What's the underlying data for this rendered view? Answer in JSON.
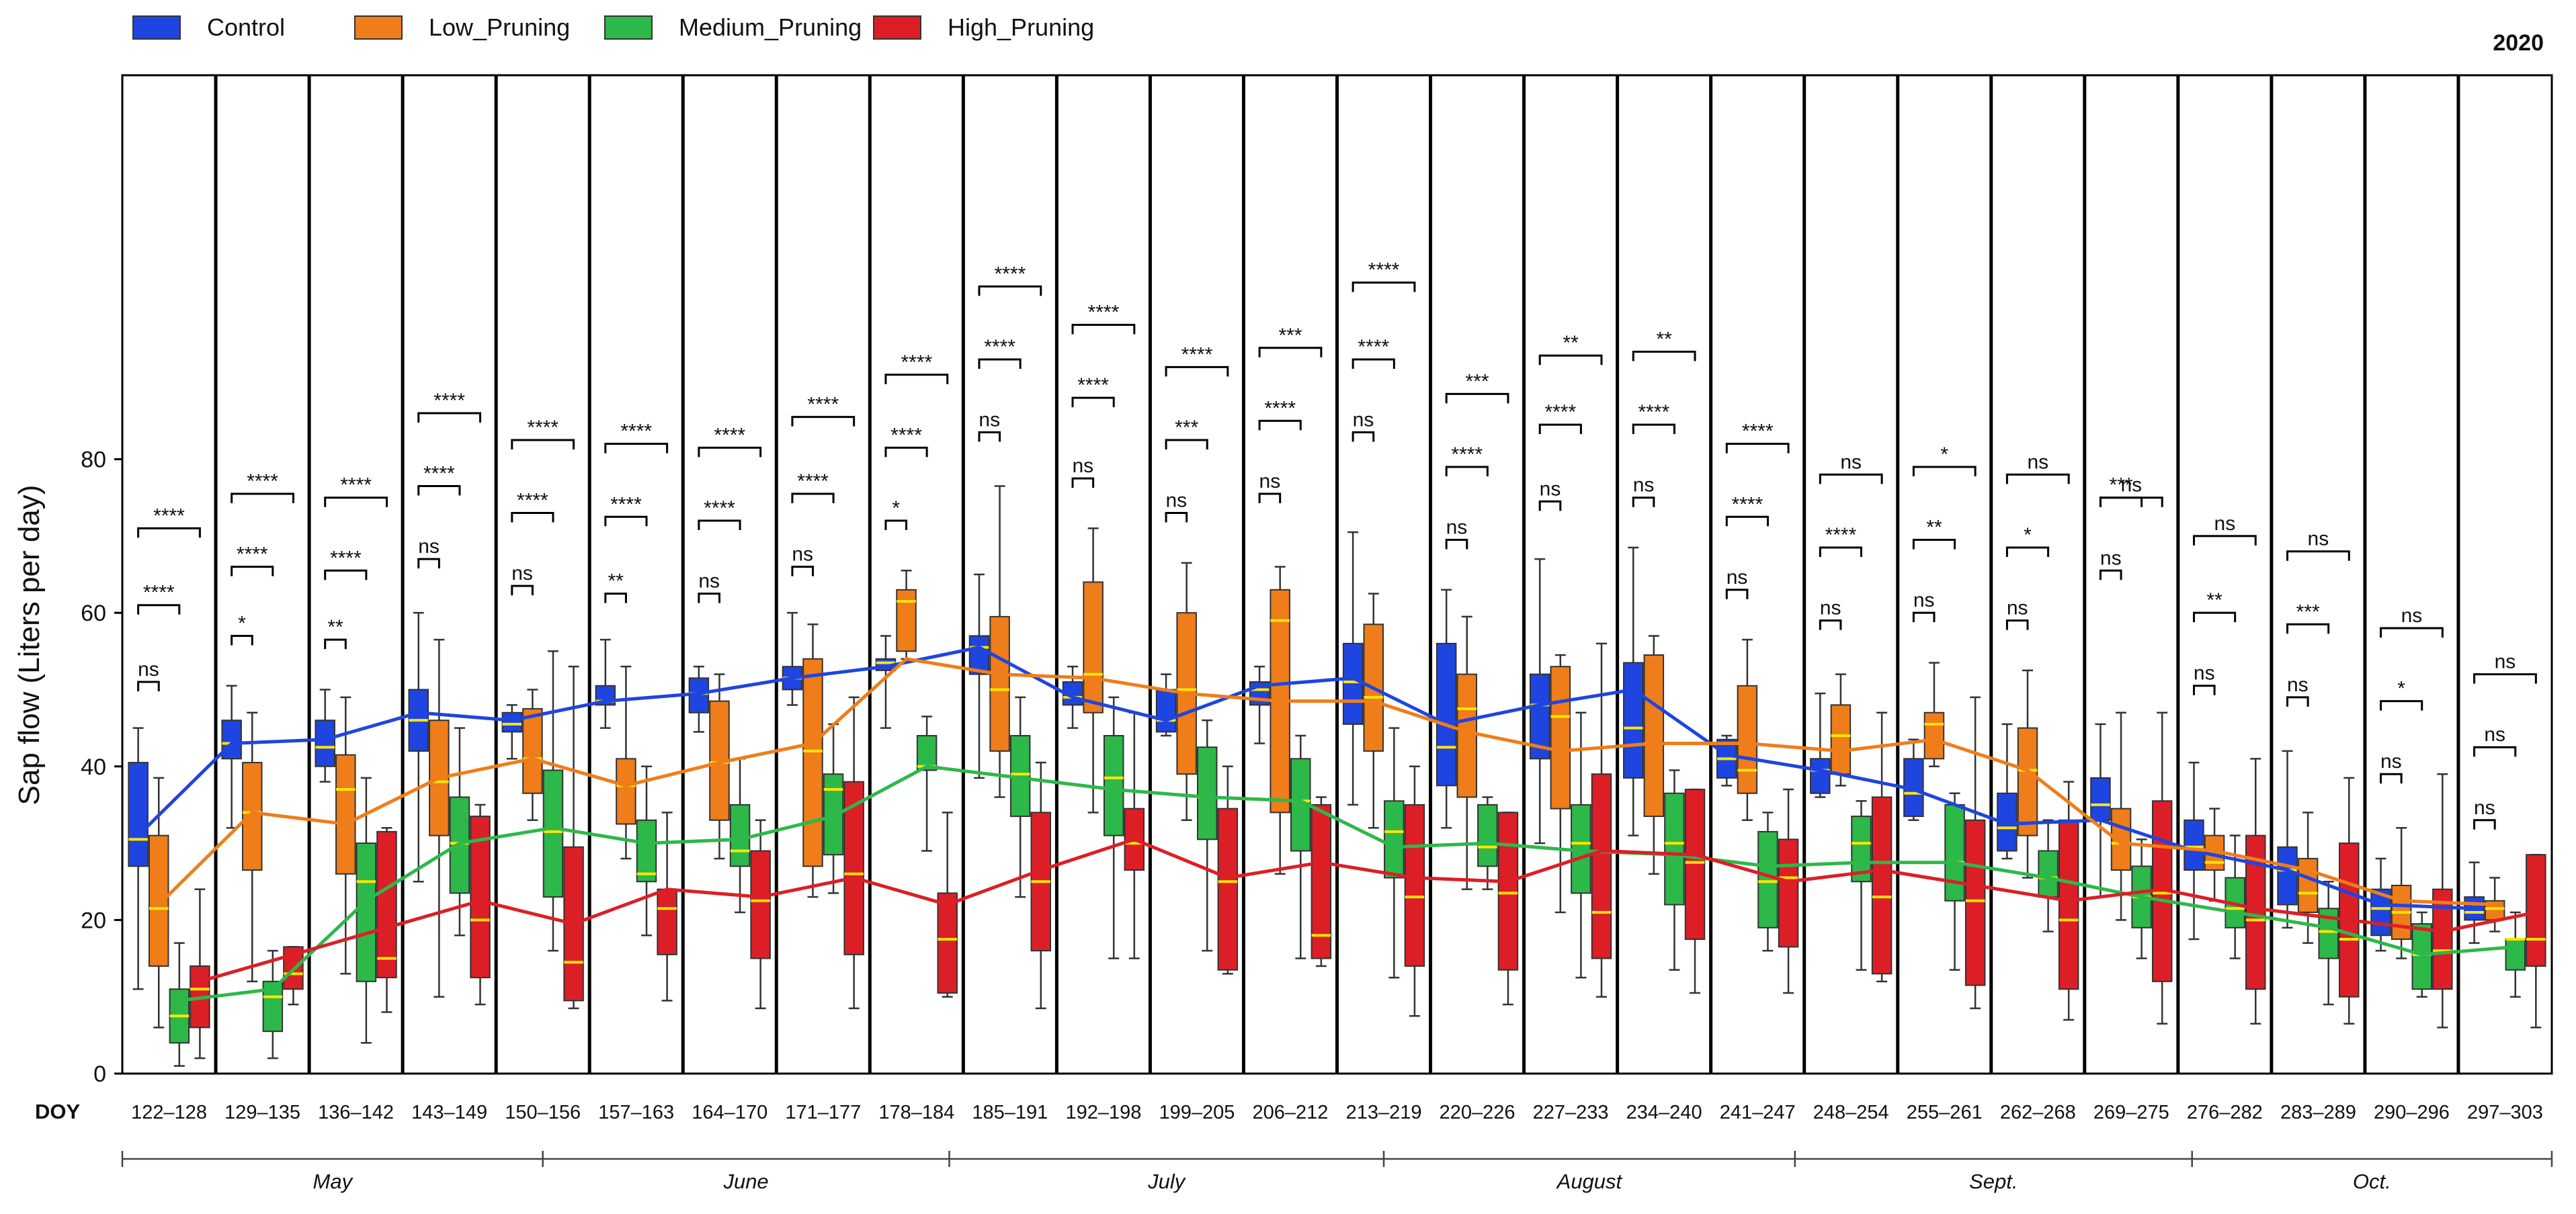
{
  "chart_data": {
    "type": "box",
    "year_label": "2020",
    "ylabel": "Sap flow (Liters per day)",
    "x_prefix": "DOY",
    "ylim": [
      0,
      130
    ],
    "yticks": [
      0,
      20,
      40,
      60,
      80
    ],
    "grid": false,
    "legend_position": "top-left",
    "series": [
      {
        "name": "Control",
        "color": "#1f45e0",
        "median_line": [
          31,
          43,
          43.5,
          47,
          46,
          48.5,
          49.5,
          51.5,
          53,
          55.5,
          49,
          46,
          50.5,
          51.5,
          45.5,
          48,
          50,
          41.5,
          39.5,
          37,
          32.5,
          33,
          29,
          26.5,
          22,
          21.5
        ]
      },
      {
        "name": "Low_Pruning",
        "color": "#ef7d1a",
        "median_line": [
          22,
          34,
          32.5,
          38.5,
          41,
          37.5,
          40.5,
          43,
          54,
          52,
          51.5,
          49.5,
          48.5,
          48.5,
          44.5,
          42,
          43,
          43,
          42,
          43.5,
          39.5,
          30,
          29,
          26.5,
          22.5,
          22
        ]
      },
      {
        "name": "Medium_Pruning",
        "color": "#2db84a",
        "median_line": [
          9.5,
          11,
          22.5,
          30,
          32,
          30,
          30.5,
          33.5,
          40,
          38.5,
          37,
          36,
          35.5,
          29.5,
          30,
          29,
          28.5,
          27,
          27.5,
          27.5,
          25.5,
          23,
          21,
          19,
          15.5,
          16.5
        ]
      },
      {
        "name": "High_Pruning",
        "color": "#dc1f26",
        "median_line": [
          12,
          15.5,
          19,
          22.5,
          19.5,
          24,
          23,
          25.5,
          22,
          26.5,
          30.5,
          25.5,
          27.5,
          25.5,
          25,
          29,
          28.5,
          25,
          26.5,
          24.5,
          22.5,
          24,
          21.5,
          20,
          18.5,
          21
        ]
      }
    ],
    "categories": [
      "122–128",
      "129–135",
      "136–142",
      "143–149",
      "150–156",
      "157–163",
      "164–170",
      "171–177",
      "178–184",
      "185–191",
      "192–198",
      "199–205",
      "206–212",
      "213–219",
      "220–226",
      "227–233",
      "234–240",
      "241–247",
      "248–254",
      "255–261",
      "262–268",
      "269–275",
      "276–282",
      "283–289",
      "290–296",
      "297–303"
    ],
    "boxes": [
      {
        "week": "122–128",
        "Control": [
          11,
          27,
          30.5,
          40.5,
          45
        ],
        "Low_Pruning": [
          6,
          14,
          21.5,
          31,
          38.5
        ],
        "Medium_Pruning": [
          1,
          4,
          7.5,
          11,
          17
        ],
        "High_Pruning": [
          2,
          6,
          11,
          14,
          24
        ]
      },
      {
        "week": "129–135",
        "Control": [
          32,
          41,
          43,
          46,
          50.5
        ],
        "Low_Pruning": [
          12,
          26.5,
          34,
          40.5,
          47
        ],
        "Medium_Pruning": [
          2,
          5.5,
          10,
          12,
          16
        ],
        "High_Pruning": [
          9,
          11,
          13,
          16.5,
          16.5
        ]
      },
      {
        "week": "136–142",
        "Control": [
          38,
          40,
          42.5,
          46,
          50
        ],
        "Low_Pruning": [
          13,
          26,
          37,
          41.5,
          49
        ],
        "Medium_Pruning": [
          4,
          12,
          25,
          30,
          38.5
        ],
        "High_Pruning": [
          8,
          12.5,
          15,
          31.5,
          32
        ]
      },
      {
        "week": "143–149",
        "Control": [
          25,
          42,
          46,
          50,
          60
        ],
        "Low_Pruning": [
          10,
          31,
          38,
          46,
          56.5
        ],
        "Medium_Pruning": [
          18,
          23.5,
          30,
          36,
          45
        ],
        "High_Pruning": [
          9,
          12.5,
          20,
          33.5,
          35
        ]
      },
      {
        "week": "150–156",
        "Control": [
          41,
          44.5,
          45.5,
          47,
          48
        ],
        "Low_Pruning": [
          33,
          36.5,
          41,
          47.5,
          50
        ],
        "Medium_Pruning": [
          16,
          23,
          31.5,
          39.5,
          55
        ],
        "High_Pruning": [
          8.5,
          9.5,
          14.5,
          29.5,
          53
        ]
      },
      {
        "week": "157–163",
        "Control": [
          45,
          48,
          48.5,
          50.5,
          56.5
        ],
        "Low_Pruning": [
          28,
          32.5,
          37.5,
          41,
          53
        ],
        "Medium_Pruning": [
          18,
          25,
          26,
          33,
          40
        ],
        "High_Pruning": [
          9.5,
          15.5,
          21.5,
          24,
          34
        ]
      },
      {
        "week": "164–170",
        "Control": [
          44.5,
          47,
          49.5,
          51.5,
          53
        ],
        "Low_Pruning": [
          28,
          33,
          40.5,
          48.5,
          52
        ],
        "Medium_Pruning": [
          21,
          27,
          29,
          35,
          41
        ],
        "High_Pruning": [
          8.5,
          15,
          22.5,
          29,
          33
        ]
      },
      {
        "week": "171–177",
        "Control": [
          48,
          50,
          51.5,
          53,
          60
        ],
        "Low_Pruning": [
          23,
          27,
          42,
          54,
          58.5
        ],
        "Medium_Pruning": [
          23.5,
          28.5,
          37,
          39,
          45.5
        ],
        "High_Pruning": [
          8.5,
          15.5,
          26,
          38,
          49
        ]
      },
      {
        "week": "178–184",
        "Control": [
          45,
          52.5,
          53.5,
          54,
          57
        ],
        "Low_Pruning": [
          54,
          55,
          61.5,
          63,
          65.5
        ],
        "Medium_Pruning": [
          29,
          39.5,
          40,
          44,
          46.5
        ],
        "High_Pruning": [
          10,
          10.5,
          17.5,
          23.5,
          34
        ]
      },
      {
        "week": "185–191",
        "Control": [
          38.5,
          52,
          55.5,
          57,
          65
        ],
        "Low_Pruning": [
          36,
          42,
          50,
          59.5,
          76.5
        ],
        "Medium_Pruning": [
          23,
          33.5,
          39,
          44,
          49
        ],
        "High_Pruning": [
          8.5,
          16,
          25,
          34,
          40.5
        ]
      },
      {
        "week": "192–198",
        "Control": [
          45,
          48,
          49,
          51,
          53
        ],
        "Low_Pruning": [
          34,
          47,
          52,
          64,
          71
        ],
        "Medium_Pruning": [
          15,
          31,
          38.5,
          44,
          49
        ],
        "High_Pruning": [
          15,
          26.5,
          30,
          34.5,
          47
        ]
      },
      {
        "week": "199–205",
        "Control": [
          44,
          44.5,
          46,
          50,
          52
        ],
        "Low_Pruning": [
          33,
          39,
          50,
          60,
          66.5
        ],
        "Medium_Pruning": [
          16,
          30.5,
          36,
          42.5,
          46
        ],
        "High_Pruning": [
          13,
          13.5,
          25,
          34.5,
          40
        ]
      },
      {
        "week": "206–212",
        "Control": [
          43,
          48,
          50,
          51,
          53
        ],
        "Low_Pruning": [
          26,
          34,
          59,
          63,
          66
        ],
        "Medium_Pruning": [
          15,
          29,
          35.5,
          41,
          44
        ],
        "High_Pruning": [
          14,
          15,
          18,
          35,
          36
        ]
      },
      {
        "week": "213–219",
        "Control": [
          35,
          45.5,
          51,
          56,
          70.5
        ],
        "Low_Pruning": [
          32,
          42,
          49,
          58.5,
          62.5
        ],
        "Medium_Pruning": [
          12.5,
          25.5,
          31.5,
          35.5,
          45
        ],
        "High_Pruning": [
          7.5,
          14,
          23,
          35,
          40
        ]
      },
      {
        "week": "220–226",
        "Control": [
          32,
          37.5,
          42.5,
          56,
          63
        ],
        "Low_Pruning": [
          24,
          36,
          47.5,
          52,
          59.5
        ],
        "Medium_Pruning": [
          24,
          27,
          29.5,
          35,
          36
        ],
        "High_Pruning": [
          9,
          13.5,
          23.5,
          34,
          34
        ]
      },
      {
        "week": "227–233",
        "Control": [
          30,
          41,
          48,
          52,
          67
        ],
        "Low_Pruning": [
          21,
          34.5,
          46.5,
          53,
          54.5
        ],
        "Medium_Pruning": [
          12.5,
          23.5,
          30,
          35,
          47
        ],
        "High_Pruning": [
          10,
          15,
          21,
          39,
          56
        ]
      },
      {
        "week": "234–240",
        "Control": [
          31,
          38.5,
          45,
          53.5,
          68.5
        ],
        "Low_Pruning": [
          26,
          33.5,
          43,
          54.5,
          57
        ],
        "Medium_Pruning": [
          13.5,
          22,
          30,
          36.5,
          39.5
        ],
        "High_Pruning": [
          10.5,
          17.5,
          27.5,
          37,
          37
        ]
      },
      {
        "week": "241–247",
        "Control": [
          37.5,
          38.5,
          41,
          43.5,
          44
        ],
        "Low_Pruning": [
          33,
          36.5,
          39.5,
          50.5,
          56.5
        ],
        "Medium_Pruning": [
          16,
          19,
          25,
          31.5,
          34
        ],
        "High_Pruning": [
          10.5,
          16.5,
          25.5,
          30.5,
          37
        ]
      },
      {
        "week": "248–254",
        "Control": [
          36,
          36.5,
          39.5,
          41,
          49.5
        ],
        "Low_Pruning": [
          37.5,
          39,
          44,
          48,
          52
        ],
        "Medium_Pruning": [
          13.5,
          25,
          30,
          33.5,
          35.5
        ],
        "High_Pruning": [
          12,
          13,
          23,
          36,
          47
        ]
      },
      {
        "week": "255–261",
        "Control": [
          33,
          33.5,
          36.5,
          41,
          43.5
        ],
        "Low_Pruning": [
          40,
          41,
          45.5,
          47,
          53.5
        ],
        "Medium_Pruning": [
          13.5,
          22.5,
          27.5,
          35,
          36.5
        ],
        "High_Pruning": [
          8.5,
          11.5,
          22.5,
          33,
          49
        ]
      },
      {
        "week": "262–268",
        "Control": [
          28,
          29,
          32,
          36.5,
          45.5
        ],
        "Low_Pruning": [
          25.5,
          31,
          39.5,
          45,
          52.5
        ],
        "Medium_Pruning": [
          18.5,
          23,
          25.5,
          29,
          33
        ],
        "High_Pruning": [
          7,
          11,
          20,
          33,
          38
        ]
      },
      {
        "week": "269–275",
        "Control": [
          23,
          33,
          35,
          38.5,
          45.5
        ],
        "Low_Pruning": [
          20,
          26.5,
          30,
          34.5,
          47
        ],
        "Medium_Pruning": [
          15,
          19,
          23,
          27,
          30.5
        ],
        "High_Pruning": [
          6.5,
          12,
          23.5,
          35.5,
          47
        ]
      },
      {
        "week": "276–282",
        "Control": [
          17.5,
          26.5,
          29.5,
          33,
          40.5
        ],
        "Low_Pruning": [
          22.5,
          26.5,
          27.5,
          31,
          34.5
        ],
        "Medium_Pruning": [
          15,
          19,
          21.5,
          25.5,
          31
        ],
        "High_Pruning": [
          6.5,
          11,
          20,
          31,
          41
        ]
      },
      {
        "week": "283–289",
        "Control": [
          19,
          22,
          26.5,
          29.5,
          42
        ],
        "Low_Pruning": [
          17,
          21,
          23.5,
          28,
          34
        ],
        "Medium_Pruning": [
          9,
          15,
          18.5,
          21.5,
          25
        ],
        "High_Pruning": [
          6.5,
          10,
          17.5,
          30,
          38.5
        ]
      },
      {
        "week": "290–296",
        "Control": [
          16,
          18,
          21.5,
          24,
          28
        ],
        "Low_Pruning": [
          15,
          17.5,
          21,
          24.5,
          32
        ],
        "Medium_Pruning": [
          10,
          11,
          15.5,
          19.5,
          21
        ],
        "High_Pruning": [
          6,
          11,
          16,
          24,
          39
        ]
      },
      {
        "week": "297–303",
        "Control": [
          17,
          20,
          21,
          23,
          27.5
        ],
        "Low_Pruning": [
          18.5,
          20,
          21.5,
          22.5,
          25.5
        ],
        "Medium_Pruning": [
          10,
          13.5,
          17.5,
          17.5,
          21
        ],
        "High_Pruning": [
          6,
          14,
          17.5,
          28.5,
          28.5
        ]
      }
    ],
    "significance": [
      [
        "ns",
        "****",
        "****"
      ],
      [
        "*",
        "****",
        "****"
      ],
      [
        "**",
        "****",
        "****"
      ],
      [
        "ns",
        "****",
        "****"
      ],
      [
        "ns",
        "****",
        "****"
      ],
      [
        "**",
        "****",
        "****"
      ],
      [
        "ns",
        "****",
        "****"
      ],
      [
        "ns",
        "****",
        "****"
      ],
      [
        "*",
        "****",
        "****"
      ],
      [
        "ns",
        "****",
        "****"
      ],
      [
        "ns",
        "****",
        "****"
      ],
      [
        "ns",
        "***",
        "****"
      ],
      [
        "ns",
        "****",
        "***"
      ],
      [
        "ns",
        "****",
        "****"
      ],
      [
        "ns",
        "****",
        "***"
      ],
      [
        "ns",
        "****",
        "**"
      ],
      [
        "ns",
        "****",
        "**"
      ],
      [
        "ns",
        "****",
        "****"
      ],
      [
        "ns",
        "****",
        "ns"
      ],
      [
        "ns",
        "**",
        "*"
      ],
      [
        "ns",
        "*",
        "ns"
      ],
      [
        "ns",
        "***",
        "ns"
      ],
      [
        "ns",
        "**",
        "ns"
      ],
      [
        "ns",
        "***",
        "ns"
      ],
      [
        "ns",
        "*",
        "ns"
      ],
      [
        "ns",
        "ns",
        "ns"
      ]
    ],
    "sig_brackets": [
      [
        51,
        61,
        71
      ],
      [
        57,
        66,
        75.5
      ],
      [
        56.5,
        65.5,
        75
      ],
      [
        67,
        76.5,
        86
      ],
      [
        63.5,
        73,
        82.5
      ],
      [
        62.5,
        72.5,
        82
      ],
      [
        62.5,
        72,
        81.5
      ],
      [
        66,
        75.5,
        85.5
      ],
      [
        72,
        81.5,
        91
      ],
      [
        83.5,
        93,
        102.5
      ],
      [
        77.5,
        88,
        97.5
      ],
      [
        73,
        82.5,
        92
      ],
      [
        75.5,
        85,
        94.5
      ],
      [
        83.5,
        93,
        103
      ],
      [
        69.5,
        79,
        88.5
      ],
      [
        74.5,
        84.5,
        93.5
      ],
      [
        75,
        84.5,
        94
      ],
      [
        63,
        72.5,
        82
      ],
      [
        59,
        68.5,
        78
      ],
      [
        60,
        69.5,
        79
      ],
      [
        59,
        68.5,
        78
      ],
      [
        65.5,
        75,
        75
      ],
      [
        50.5,
        60,
        70
      ],
      [
        49,
        58.5,
        68
      ],
      [
        39,
        48.5,
        58
      ],
      [
        33,
        42.5,
        52
      ]
    ],
    "months": [
      {
        "label": "May",
        "start": 0,
        "end": 4.5
      },
      {
        "label": "June",
        "start": 4.5,
        "end": 8.85
      },
      {
        "label": "July",
        "start": 8.85,
        "end": 13.5
      },
      {
        "label": "August",
        "start": 13.5,
        "end": 17.9
      },
      {
        "label": "Sept.",
        "start": 17.9,
        "end": 22.15
      },
      {
        "label": "Oct.",
        "start": 22.15,
        "end": 26
      }
    ]
  }
}
